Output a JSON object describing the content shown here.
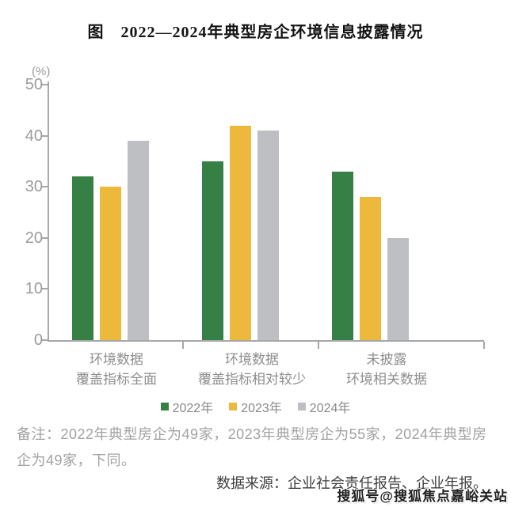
{
  "title": "图　2022—2024年典型房企环境信息披露情况",
  "chart_data": {
    "type": "bar",
    "title": "图　2022—2024年典型房企环境信息披露情况",
    "unit_label": "(%)",
    "ylabel": "",
    "xlabel": "",
    "ylim": [
      0,
      50
    ],
    "yticks": [
      0,
      10,
      20,
      30,
      40,
      50
    ],
    "grid": false,
    "legend_position": "bottom",
    "categories": [
      "环境数据\n覆盖指标全面",
      "环境数据\n覆盖指标相对较少",
      "未披露\n环境相关数据"
    ],
    "series": [
      {
        "name": "2022年",
        "color": "#368045",
        "values": [
          32,
          35,
          33
        ]
      },
      {
        "name": "2023年",
        "color": "#edb93c",
        "values": [
          30,
          42,
          28
        ]
      },
      {
        "name": "2024年",
        "color": "#bdbfc3",
        "values": [
          39,
          41,
          20
        ]
      }
    ],
    "axis_color": "#a6a7a9"
  },
  "notes": {
    "note": "备注：2022年典型房企为49家，2023年典型房企为55家，2024年典型房企为49家，下同。",
    "source": "数据来源：企业社会责任报告、企业年报。",
    "watermark": "搜狐号@搜狐焦点嘉峪关站"
  }
}
